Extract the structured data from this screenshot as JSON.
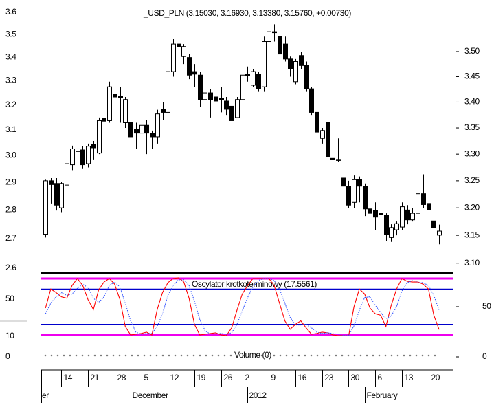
{
  "chart_data": [
    {
      "type": "candlestick",
      "title": "_USD_PLN (3.15030, 3.16930, 3.13380, 3.15760, +0.00730)",
      "log_scale": true,
      "ylim": [
        3.085,
        3.605
      ],
      "yticks": [
        {
          "value": 3.5,
          "label": "3.50"
        },
        3.45,
        {
          "value": 3.4,
          "label": "3.40"
        },
        3.35,
        {
          "value": 3.3,
          "label": "3.30"
        },
        3.25,
        {
          "value": 3.2,
          "label": "3.20"
        },
        3.15,
        {
          "value": 3.1,
          "label": "3.10"
        }
      ],
      "y2lim": [
        2.5886,
        3.657
      ],
      "y2ticks": [
        3.6,
        3.5,
        3.4,
        3.3,
        3.2,
        3.1,
        {
          "value": 3,
          "label": "3.0"
        },
        2.9,
        2.8,
        2.7,
        2.6
      ],
      "xlim": [
        -0.8,
        76.7
      ],
      "xticks": [
        {
          "value": 3,
          "label": "14"
        },
        {
          "value": 8,
          "label": "21"
        },
        {
          "value": 13,
          "label": "28"
        },
        {
          "value": 18,
          "label": "5"
        },
        {
          "value": 23,
          "label": "12"
        },
        {
          "value": 28,
          "label": "19"
        },
        {
          "value": 33,
          "label": "26"
        },
        {
          "value": 37,
          "label": "2"
        },
        {
          "value": 42,
          "label": "9"
        },
        {
          "value": 47,
          "label": "16"
        },
        {
          "value": 52,
          "label": "23"
        },
        {
          "value": 57,
          "label": "30"
        },
        {
          "value": 62,
          "label": "6"
        },
        {
          "value": 67,
          "label": "13"
        },
        {
          "value": 72,
          "label": "20"
        }
      ],
      "month_ticks": [
        {
          "value": -6,
          "label": "er"
        },
        {
          "value": 16,
          "label": "December"
        },
        {
          "value": 38,
          "label": "2012"
        },
        {
          "value": 60,
          "label": "February"
        }
      ],
      "up_color": "#ffffff",
      "down_color": "#000000",
      "open": [
        3.152,
        3.25,
        3.245,
        3.2,
        3.242,
        3.28,
        3.305,
        3.308,
        3.282,
        3.318,
        3.302,
        3.368,
        3.364,
        3.415,
        3.412,
        3.36,
        3.36,
        3.348,
        3.34,
        3.355,
        3.34,
        3.333,
        3.386,
        3.38,
        3.46,
        3.515,
        3.49,
        3.488,
        3.46,
        3.453,
        3.405,
        3.418,
        3.41,
        3.408,
        3.402,
        3.392,
        3.37,
        3.405,
        3.455,
        3.433,
        3.455,
        3.43,
        3.52,
        3.54,
        3.53,
        3.515,
        3.485,
        3.44,
        3.492,
        3.472,
        3.426,
        3.38,
        3.33,
        3.36,
        3.292,
        3.29,
        3.255,
        3.24,
        3.21,
        3.252,
        3.24,
        3.198,
        3.195,
        3.19,
        3.186,
        3.146,
        3.16,
        3.165,
        3.196,
        3.178,
        3.19,
        3.226,
        3.208,
        3.176,
        3.1503
      ],
      "high": [
        3.252,
        3.255,
        3.255,
        3.248,
        3.29,
        3.316,
        3.32,
        3.315,
        3.32,
        3.325,
        3.37,
        3.38,
        3.44,
        3.425,
        3.43,
        3.41,
        3.365,
        3.36,
        3.36,
        3.365,
        3.345,
        3.385,
        3.4,
        3.465,
        3.525,
        3.53,
        3.515,
        3.495,
        3.475,
        3.46,
        3.425,
        3.425,
        3.42,
        3.43,
        3.41,
        3.4,
        3.41,
        3.46,
        3.47,
        3.465,
        3.46,
        3.53,
        3.55,
        3.555,
        3.535,
        3.53,
        3.49,
        3.485,
        3.5,
        3.48,
        3.43,
        3.385,
        3.35,
        3.37,
        3.3,
        3.33,
        3.26,
        3.25,
        3.26,
        3.258,
        3.245,
        3.21,
        3.21,
        3.195,
        3.19,
        3.17,
        3.175,
        3.21,
        3.205,
        3.2,
        3.232,
        3.262,
        3.21,
        3.178,
        3.1693
      ],
      "low": [
        3.146,
        3.208,
        3.195,
        3.192,
        3.23,
        3.27,
        3.27,
        3.272,
        3.275,
        3.29,
        3.3,
        3.3,
        3.36,
        3.34,
        3.36,
        3.35,
        3.32,
        3.31,
        3.305,
        3.3,
        3.31,
        3.32,
        3.365,
        3.38,
        3.45,
        3.48,
        3.475,
        3.445,
        3.43,
        3.39,
        3.37,
        3.37,
        3.38,
        3.38,
        3.375,
        3.36,
        3.37,
        3.4,
        3.44,
        3.43,
        3.42,
        3.42,
        3.51,
        3.52,
        3.485,
        3.48,
        3.45,
        3.435,
        3.465,
        3.42,
        3.375,
        3.335,
        3.32,
        3.285,
        3.28,
        3.285,
        3.225,
        3.2,
        3.2,
        3.21,
        3.185,
        3.175,
        3.16,
        3.18,
        3.14,
        3.138,
        3.15,
        3.16,
        3.17,
        3.175,
        3.186,
        3.2,
        3.188,
        3.15,
        3.1338
      ],
      "close": [
        3.25,
        3.243,
        3.205,
        3.245,
        3.282,
        3.31,
        3.31,
        3.28,
        3.315,
        3.312,
        3.364,
        3.363,
        3.43,
        3.41,
        3.408,
        3.405,
        3.333,
        3.34,
        3.355,
        3.34,
        3.333,
        3.377,
        3.38,
        3.46,
        3.515,
        3.51,
        3.51,
        3.453,
        3.455,
        3.405,
        3.418,
        3.405,
        3.402,
        3.405,
        3.386,
        3.364,
        3.405,
        3.453,
        3.452,
        3.46,
        3.426,
        3.52,
        3.54,
        3.538,
        3.495,
        3.485,
        3.466,
        3.48,
        3.472,
        3.426,
        3.38,
        3.342,
        3.345,
        3.295,
        3.29,
        3.288,
        3.24,
        3.205,
        3.252,
        3.24,
        3.198,
        3.19,
        3.183,
        3.188,
        3.152,
        3.164,
        3.171,
        3.202,
        3.178,
        3.19,
        3.226,
        3.206,
        3.196,
        3.164,
        3.1576
      ]
    },
    {
      "type": "line",
      "title": "Oscylator krotkoterminowy (17.5561)",
      "ylim": [
        -2.7,
        96.8
      ],
      "yticks": [
        50
      ],
      "y2lim": [
        1.85,
        77.4
      ],
      "y2ticks": [
        50,
        10
      ],
      "levels": [
        90,
        75,
        25,
        10
      ],
      "level_colors": [
        "#ee00ee",
        "#0000cc",
        "#0000cc",
        "#ee00ee"
      ],
      "series": [
        {
          "color": "#ff0000",
          "values": [
            48,
            75,
            70,
            64,
            62,
            80,
            90,
            80,
            60,
            46,
            74,
            85,
            90,
            82,
            60,
            22,
            10,
            11,
            12,
            14,
            10,
            46,
            70,
            84,
            90,
            91,
            85,
            62,
            25,
            10,
            11,
            12,
            13,
            10,
            9,
            20,
            45,
            68,
            80,
            90,
            90,
            90,
            90,
            80,
            55,
            30,
            18,
            25,
            30,
            20,
            11,
            12,
            14,
            13,
            10,
            9,
            9,
            9,
            50,
            75,
            68,
            48,
            40,
            38,
            22,
            52,
            75,
            90,
            86,
            85,
            85,
            82,
            75,
            38,
            17.5561
          ]
        },
        {
          "color": "#3355ff",
          "dashed": true,
          "values": [
            40,
            55,
            64,
            70,
            66,
            68,
            76,
            82,
            77,
            62,
            56,
            64,
            80,
            85,
            78,
            55,
            30,
            14,
            11,
            12,
            12,
            22,
            40,
            66,
            80,
            88,
            88,
            80,
            58,
            32,
            16,
            11,
            12,
            12,
            11,
            13,
            25,
            44,
            63,
            78,
            87,
            90,
            90,
            87,
            75,
            55,
            35,
            24,
            24,
            25,
            20,
            14,
            12,
            13,
            12,
            11,
            9,
            9,
            23,
            45,
            63,
            64,
            52,
            42,
            33,
            37,
            50,
            72,
            84,
            87,
            85,
            84,
            80,
            66,
            45
          ]
        }
      ]
    },
    {
      "type": "line",
      "title": "Volume (0)",
      "ylim": [
        -1,
        1
      ],
      "yticks": [
        0
      ],
      "y2lim": [
        -1,
        1
      ],
      "y2ticks": [
        0
      ]
    }
  ]
}
